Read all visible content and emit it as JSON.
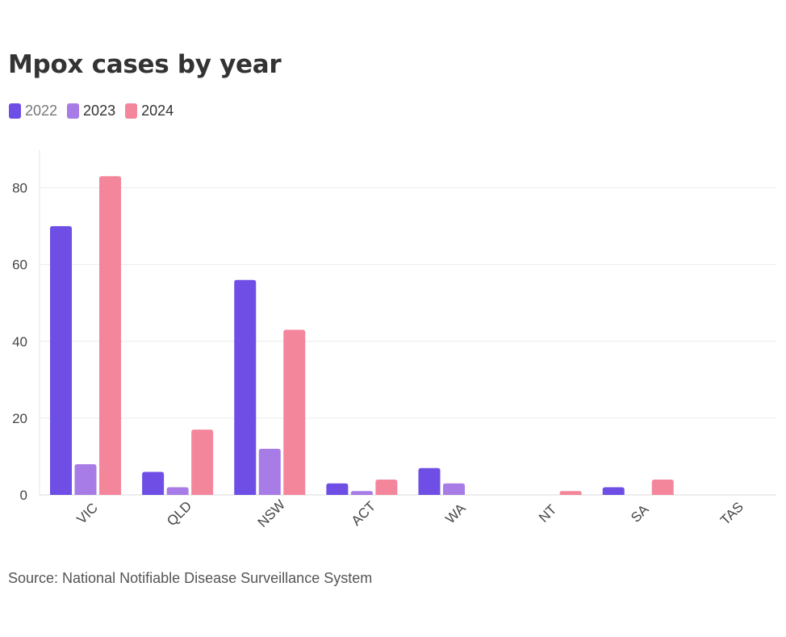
{
  "title": "Mpox cases by year",
  "source": "Source: National Notifiable Disease Surveillance System",
  "legend": [
    {
      "label": "2022",
      "color": "#6f4ee6"
    },
    {
      "label": "2023",
      "color": "#a77ce6"
    },
    {
      "label": "2024",
      "color": "#f4869c"
    }
  ],
  "chart_data": {
    "type": "bar",
    "title": "Mpox cases by year",
    "xlabel": "",
    "ylabel": "",
    "categories": [
      "VIC",
      "QLD",
      "NSW",
      "ACT",
      "WA",
      "NT",
      "SA",
      "TAS"
    ],
    "series": [
      {
        "name": "2022",
        "color": "#6f4ee6",
        "values": [
          70,
          6,
          56,
          3,
          7,
          0,
          2,
          0
        ]
      },
      {
        "name": "2023",
        "color": "#a77ce6",
        "values": [
          8,
          2,
          12,
          1,
          3,
          0,
          0,
          0
        ]
      },
      {
        "name": "2024",
        "color": "#f4869c",
        "values": [
          83,
          17,
          43,
          4,
          0,
          1,
          4,
          0
        ]
      }
    ],
    "ylim": [
      0,
      90
    ],
    "yticks": [
      0,
      20,
      40,
      60,
      80
    ],
    "grid": true,
    "legend_position": "top-left"
  }
}
